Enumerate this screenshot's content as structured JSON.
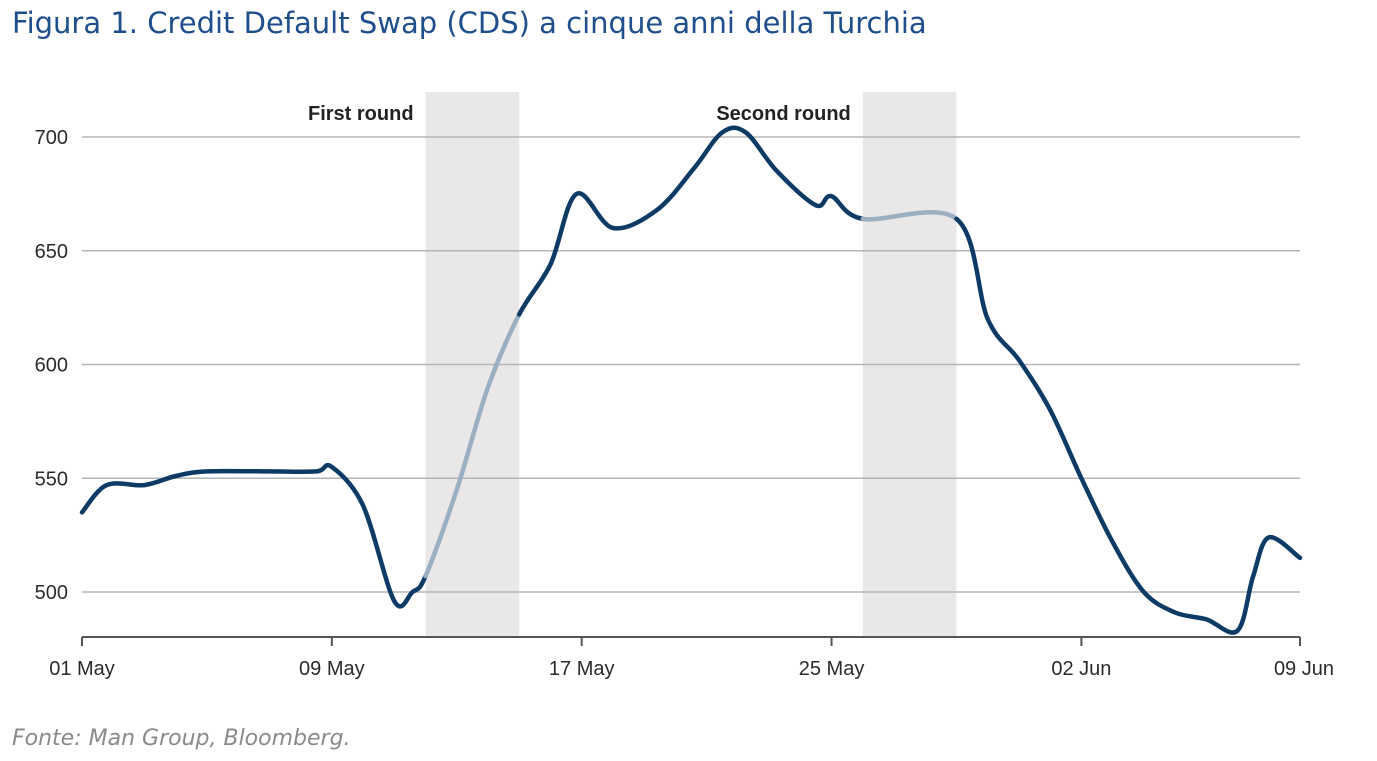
{
  "title": "Figura 1. Credit Default Swap (CDS) a cinque anni della Turchia",
  "source": "Fonte: Man Group, Bloomberg.",
  "chart_data": {
    "type": "line",
    "title": "",
    "xlabel": "",
    "ylabel": "",
    "ylim": [
      480,
      720
    ],
    "xlim": [
      "2018-05-01",
      "2018-06-09"
    ],
    "yticks": [
      500,
      550,
      600,
      650,
      700
    ],
    "xticks": [
      {
        "date": "2018-05-01",
        "label": "01 May"
      },
      {
        "date": "2018-05-09",
        "label": "09 May"
      },
      {
        "date": "2018-05-17",
        "label": "17 May"
      },
      {
        "date": "2018-05-25",
        "label": "25 May"
      },
      {
        "date": "2018-06-02",
        "label": "02 Jun"
      },
      {
        "date": "2018-06-09",
        "label": "09 Jun"
      }
    ],
    "grid": "horizontal",
    "line_color": "#0d3b66",
    "shaded_line_color": "#9aafc2",
    "band_color": "#e9e7e8",
    "bands": [
      {
        "label": "First round",
        "start": "2018-05-12T00:00",
        "end": "2018-05-15T00:00"
      },
      {
        "label": "Second round",
        "start": "2018-05-26T00:00",
        "end": "2018-05-29T00:00"
      }
    ],
    "series": [
      {
        "values": [
          {
            "x": "2018-05-01T00:00",
            "y": 535
          },
          {
            "x": "2018-05-01T19:00",
            "y": 547
          },
          {
            "x": "2018-05-03T00:00",
            "y": 547
          },
          {
            "x": "2018-05-04T00:00",
            "y": 551
          },
          {
            "x": "2018-05-05T00:00",
            "y": 553
          },
          {
            "x": "2018-05-07T00:00",
            "y": 553
          },
          {
            "x": "2018-05-08T12:00",
            "y": 553
          },
          {
            "x": "2018-05-09T00:00",
            "y": 555
          },
          {
            "x": "2018-05-10T00:00",
            "y": 538
          },
          {
            "x": "2018-05-11T00:00",
            "y": 496
          },
          {
            "x": "2018-05-11T14:00",
            "y": 500
          },
          {
            "x": "2018-05-12T00:00",
            "y": 507
          },
          {
            "x": "2018-05-13T00:00",
            "y": 545
          },
          {
            "x": "2018-05-14T00:00",
            "y": 590
          },
          {
            "x": "2018-05-15T00:00",
            "y": 622
          },
          {
            "x": "2018-05-16T00:00",
            "y": 644
          },
          {
            "x": "2018-05-16T20:00",
            "y": 675
          },
          {
            "x": "2018-05-18T00:00",
            "y": 660
          },
          {
            "x": "2018-05-19T10:00",
            "y": 668
          },
          {
            "x": "2018-05-20T14:00",
            "y": 686
          },
          {
            "x": "2018-05-21T12:00",
            "y": 702
          },
          {
            "x": "2018-05-22T06:00",
            "y": 702
          },
          {
            "x": "2018-05-23T06:00",
            "y": 685
          },
          {
            "x": "2018-05-24T12:00",
            "y": 670
          },
          {
            "x": "2018-05-25T00:00",
            "y": 674
          },
          {
            "x": "2018-05-26T00:00",
            "y": 664
          },
          {
            "x": "2018-05-29T00:00",
            "y": 664
          },
          {
            "x": "2018-05-30T00:00",
            "y": 620
          },
          {
            "x": "2018-05-31T00:00",
            "y": 602
          },
          {
            "x": "2018-06-01T00:00",
            "y": 580
          },
          {
            "x": "2018-06-02T00:00",
            "y": 550
          },
          {
            "x": "2018-06-03T00:00",
            "y": 522
          },
          {
            "x": "2018-06-04T00:00",
            "y": 500
          },
          {
            "x": "2018-06-05T00:00",
            "y": 491
          },
          {
            "x": "2018-06-06T00:00",
            "y": 488
          },
          {
            "x": "2018-06-07T00:00",
            "y": 483
          },
          {
            "x": "2018-06-07T12:00",
            "y": 507
          },
          {
            "x": "2018-06-08T00:00",
            "y": 524
          },
          {
            "x": "2018-06-09T00:00",
            "y": 515
          }
        ]
      }
    ]
  }
}
